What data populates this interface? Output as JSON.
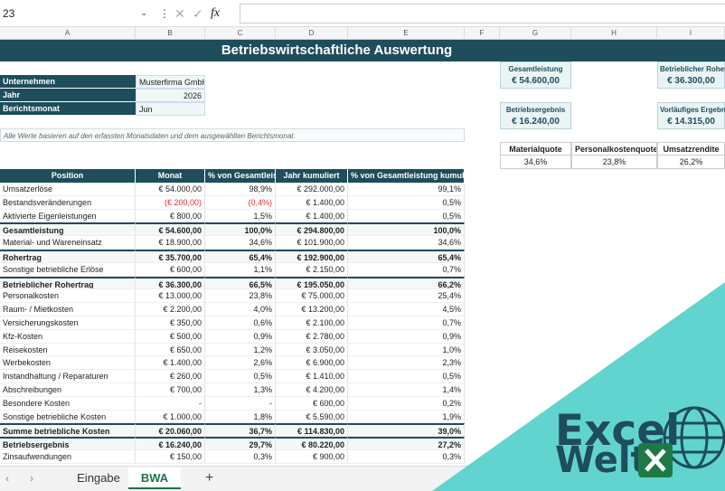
{
  "formula_bar": {
    "name_box": "23",
    "function_label": "fx"
  },
  "columns": [
    "A",
    "B",
    "C",
    "D",
    "E",
    "F",
    "G",
    "H",
    "I"
  ],
  "title": "Betriebswirtschaftliche Auswertung",
  "info": [
    [
      "Unternehmen",
      "Musterfirma GmbH"
    ],
    [
      "Jahr",
      "2026"
    ],
    [
      "Berichtsmonat",
      "Jun"
    ]
  ],
  "note": "Alle Werte basieren auf den erfassten Monatsdaten und dem ausgewählten Berichtsmonat.",
  "kpis": [
    {
      "label": "Gesamtleistung",
      "value": "€ 54.600,00"
    },
    {
      "label": "Betrieblicher Rohertrag",
      "value": "€ 36.300,00"
    },
    {
      "label": "Betriebsergebnis",
      "value": "€ 16.240,00"
    },
    {
      "label": "Vorläufiges Ergebnis",
      "value": "€ 14.315,00"
    }
  ],
  "ratios": {
    "headers": [
      "Materialquote",
      "Personalkostenquote",
      "Umsatzrendite"
    ],
    "values": [
      "34,6%",
      "23,8%",
      "26,2%"
    ]
  },
  "table": {
    "header": [
      "Position",
      "Monat",
      "% von Gesamtleistung",
      "Jahr kumuliert",
      "% von Gesamtleistung kumuliert"
    ],
    "rows": [
      {
        "cells": [
          "Umsatzerlöse",
          "€ 54.000,00",
          "98,9%",
          "€ 292.000,00",
          "99,1%"
        ]
      },
      {
        "cells": [
          "Bestandsveränderungen",
          "(€ 200,00)",
          "(0,4%)",
          "€ 1.400,00",
          "0,5%"
        ]
      },
      {
        "cells": [
          "Aktivierte Eigenleistungen",
          "€ 800,00",
          "1,5%",
          "€ 1.400,00",
          "0,5%"
        ]
      },
      {
        "cells": [
          "Gesamtleistung",
          "€ 54.600,00",
          "100,0%",
          "€ 294.800,00",
          "100,0%"
        ],
        "bold": true
      },
      {
        "cells": [
          "Material- und Wareneinsatz",
          "€ 18.900,00",
          "34,6%",
          "€ 101.900,00",
          "34,6%"
        ]
      },
      {
        "cells": [
          "Rohertrag",
          "€ 35.700,00",
          "65,4%",
          "€ 192.900,00",
          "65,4%"
        ],
        "bold": true
      },
      {
        "cells": [
          "Sonstige betriebliche Erlöse",
          "€ 600,00",
          "1,1%",
          "€ 2.150,00",
          "0,7%"
        ]
      },
      {
        "cells": [
          "Betrieblicher Rohertrag",
          "€ 36.300,00",
          "66,5%",
          "€ 195.050,00",
          "66,2%"
        ],
        "bold": true
      },
      {
        "cells": [
          "Personalkosten",
          "€ 13.000,00",
          "23,8%",
          "€ 75.000,00",
          "25,4%"
        ]
      },
      {
        "cells": [
          "Raum- / Mietkosten",
          "€ 2.200,00",
          "4,0%",
          "€ 13.200,00",
          "4,5%"
        ]
      },
      {
        "cells": [
          "Versicherungskosten",
          "€ 350,00",
          "0,6%",
          "€ 2.100,00",
          "0,7%"
        ]
      },
      {
        "cells": [
          "Kfz-Kosten",
          "€ 500,00",
          "0,9%",
          "€ 2.780,00",
          "0,9%"
        ]
      },
      {
        "cells": [
          "Reisekosten",
          "€ 650,00",
          "1,2%",
          "€ 3.050,00",
          "1,0%"
        ]
      },
      {
        "cells": [
          "Werbekosten",
          "€ 1.400,00",
          "2,6%",
          "€ 6.900,00",
          "2,3%"
        ]
      },
      {
        "cells": [
          "Instandhaltung / Reparaturen",
          "€ 260,00",
          "0,5%",
          "€ 1.410,00",
          "0,5%"
        ]
      },
      {
        "cells": [
          "Abschreibungen",
          "€ 700,00",
          "1,3%",
          "€ 4.200,00",
          "1,4%"
        ]
      },
      {
        "cells": [
          "Besondere Kosten",
          "-",
          "-",
          "€ 600,00",
          "0,2%"
        ]
      },
      {
        "cells": [
          "Sonstige betriebliche Kosten",
          "€ 1.000,00",
          "1,8%",
          "€ 5.590,00",
          "1,9%"
        ]
      },
      {
        "cells": [
          "Summe betriebliche Kosten",
          "€ 20.060,00",
          "36,7%",
          "€ 114.830,00",
          "39,0%"
        ],
        "bold": true
      },
      {
        "cells": [
          "Betriebsergebnis",
          "€ 16.240,00",
          "29,7%",
          "€ 80.220,00",
          "27,2%"
        ],
        "bold": true
      },
      {
        "cells": [
          "Zinsaufwendungen",
          "€ 150,00",
          "0,3%",
          "€ 900,00",
          "0,3%"
        ]
      }
    ]
  },
  "tabs": [
    "Eingabe",
    "BWA"
  ],
  "logo": [
    "Excel",
    "Welt"
  ]
}
